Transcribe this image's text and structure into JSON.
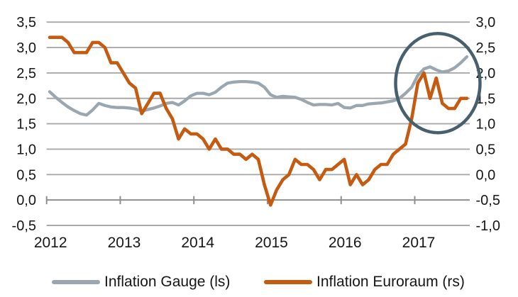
{
  "chart_data": {
    "type": "line",
    "title": "",
    "x": {
      "frequency": "monthly",
      "start": "2012-01",
      "end": "2017-09",
      "tick_labels": [
        "2012",
        "2013",
        "2014",
        "2015",
        "2016",
        "2017"
      ]
    },
    "axes": {
      "left": {
        "min": -0.5,
        "max": 3.5,
        "step": 0.5,
        "tick_labels": [
          "3,5",
          "3,0",
          "2,5",
          "2,0",
          "1,5",
          "1,0",
          "0,5",
          "0,0",
          "-0,5"
        ],
        "zero_line_value": 0.0
      },
      "right": {
        "min": -1.0,
        "max": 3.0,
        "step": 0.5,
        "tick_labels": [
          "3,0",
          "2,5",
          "2,0",
          "1,5",
          "1,0",
          "0,5",
          "0,0",
          "-0,5",
          "-1,0"
        ]
      }
    },
    "grid": {
      "on": true,
      "gridline_color": "#a9a9a9",
      "axis_color": "#8f8f8f",
      "text_color": "#161616"
    },
    "series": [
      {
        "name": "Inflation Gauge (ls)",
        "axis": "left",
        "color": "#9BA7B0",
        "values": [
          2.13,
          2.02,
          1.92,
          1.83,
          1.76,
          1.7,
          1.67,
          1.77,
          1.9,
          1.86,
          1.83,
          1.82,
          1.82,
          1.81,
          1.79,
          1.75,
          1.78,
          1.81,
          1.85,
          1.9,
          1.92,
          1.87,
          1.95,
          2.05,
          2.1,
          2.1,
          2.07,
          2.12,
          2.22,
          2.3,
          2.32,
          2.33,
          2.33,
          2.32,
          2.3,
          2.22,
          2.07,
          2.02,
          2.04,
          2.03,
          2.02,
          1.98,
          1.92,
          1.87,
          1.88,
          1.88,
          1.87,
          1.9,
          1.82,
          1.81,
          1.86,
          1.86,
          1.89,
          1.9,
          1.91,
          1.93,
          1.95,
          2.0,
          2.1,
          2.22,
          2.45,
          2.58,
          2.62,
          2.56,
          2.52,
          2.54,
          2.6,
          2.7,
          2.82
        ]
      },
      {
        "name": "Inflation Euroraum (rs)",
        "axis": "right",
        "color": "#C55A11",
        "values": [
          2.7,
          2.7,
          2.7,
          2.6,
          2.4,
          2.4,
          2.4,
          2.6,
          2.6,
          2.5,
          2.2,
          2.2,
          2.0,
          1.8,
          1.7,
          1.2,
          1.4,
          1.6,
          1.6,
          1.3,
          1.1,
          0.7,
          0.9,
          0.8,
          0.8,
          0.7,
          0.5,
          0.7,
          0.5,
          0.5,
          0.4,
          0.4,
          0.3,
          0.4,
          0.3,
          -0.2,
          -0.6,
          -0.3,
          -0.1,
          0.0,
          0.3,
          0.2,
          0.2,
          0.1,
          -0.1,
          0.1,
          0.1,
          0.2,
          0.3,
          -0.2,
          0.0,
          -0.2,
          -0.1,
          0.1,
          0.2,
          0.2,
          0.4,
          0.5,
          0.6,
          1.1,
          1.8,
          2.0,
          1.5,
          1.9,
          1.4,
          1.3,
          1.3,
          1.5,
          1.5
        ]
      }
    ],
    "annotation_circle": {
      "shape": "ellipse",
      "color": "#48606E",
      "center_month_index": 63.26,
      "center_value_left": 2.3,
      "radius_months": 6.88,
      "radius_value": 0.976
    },
    "legend_position": "bottom"
  },
  "legend": {
    "items": [
      {
        "label": "Inflation Gauge (ls)",
        "color": "#9BA7B0"
      },
      {
        "label": "Inflation Euroraum (rs)",
        "color": "#C55A11"
      }
    ]
  }
}
